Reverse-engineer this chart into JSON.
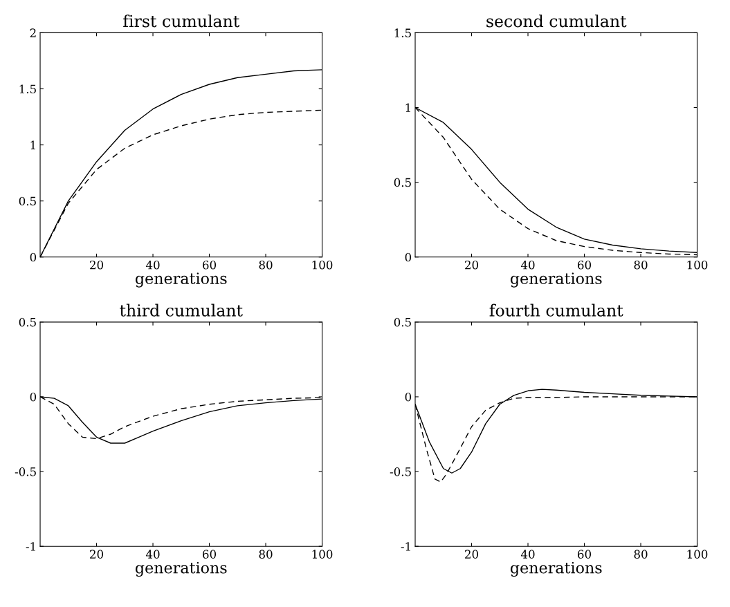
{
  "chart_data": [
    {
      "type": "line",
      "title": "first cumulant",
      "xlabel": "generations",
      "xlim": [
        0,
        100
      ],
      "xticks": [
        20,
        40,
        60,
        80,
        100
      ],
      "ylim": [
        0,
        2
      ],
      "yticks": [
        0,
        0.5,
        1,
        1.5,
        2
      ],
      "grid": false,
      "legend": false,
      "series": [
        {
          "color": "#000000",
          "line_style": "solid",
          "x": [
            0,
            10,
            20,
            30,
            40,
            50,
            60,
            70,
            80,
            90,
            100
          ],
          "values": [
            0,
            0.5,
            0.85,
            1.13,
            1.32,
            1.45,
            1.54,
            1.6,
            1.63,
            1.66,
            1.67
          ]
        },
        {
          "color": "#000000",
          "line_style": "dashed",
          "x": [
            0,
            10,
            20,
            30,
            40,
            50,
            60,
            70,
            80,
            90,
            100
          ],
          "values": [
            0,
            0.48,
            0.78,
            0.97,
            1.09,
            1.17,
            1.23,
            1.27,
            1.29,
            1.3,
            1.31
          ]
        }
      ]
    },
    {
      "type": "line",
      "title": "second cumulant",
      "xlabel": "generations",
      "xlim": [
        0,
        100
      ],
      "xticks": [
        20,
        40,
        60,
        80,
        100
      ],
      "ylim": [
        0,
        1.5
      ],
      "yticks": [
        0,
        0.5,
        1,
        1.5
      ],
      "grid": false,
      "legend": false,
      "series": [
        {
          "color": "#000000",
          "line_style": "solid",
          "x": [
            0,
            10,
            20,
            30,
            40,
            50,
            60,
            70,
            80,
            90,
            100
          ],
          "values": [
            1.0,
            0.9,
            0.72,
            0.5,
            0.32,
            0.2,
            0.12,
            0.08,
            0.055,
            0.04,
            0.03
          ]
        },
        {
          "color": "#000000",
          "line_style": "dashed",
          "x": [
            0,
            10,
            20,
            30,
            40,
            50,
            60,
            70,
            80,
            90,
            100
          ],
          "values": [
            1.0,
            0.8,
            0.52,
            0.32,
            0.19,
            0.11,
            0.07,
            0.045,
            0.03,
            0.02,
            0.015
          ]
        }
      ]
    },
    {
      "type": "line",
      "title": "third cumulant",
      "xlabel": "generations",
      "xlim": [
        0,
        100
      ],
      "xticks": [
        20,
        40,
        60,
        80,
        100
      ],
      "ylim": [
        -1,
        0.5
      ],
      "yticks": [
        -1,
        -0.5,
        0,
        0.5
      ],
      "grid": false,
      "legend": false,
      "series": [
        {
          "color": "#000000",
          "line_style": "solid",
          "x": [
            0,
            5,
            10,
            15,
            20,
            25,
            30,
            35,
            40,
            50,
            60,
            70,
            80,
            90,
            100
          ],
          "values": [
            0,
            -0.01,
            -0.06,
            -0.17,
            -0.27,
            -0.31,
            -0.31,
            -0.27,
            -0.23,
            -0.16,
            -0.1,
            -0.06,
            -0.04,
            -0.025,
            -0.015
          ]
        },
        {
          "color": "#000000",
          "line_style": "dashed",
          "x": [
            0,
            5,
            10,
            15,
            20,
            25,
            30,
            40,
            50,
            60,
            70,
            80,
            90,
            100
          ],
          "values": [
            0,
            -0.05,
            -0.18,
            -0.27,
            -0.28,
            -0.25,
            -0.2,
            -0.13,
            -0.08,
            -0.05,
            -0.03,
            -0.02,
            -0.01,
            -0.005
          ]
        }
      ]
    },
    {
      "type": "line",
      "title": "fourth cumulant",
      "xlabel": "generations",
      "xlim": [
        0,
        100
      ],
      "xticks": [
        20,
        40,
        60,
        80,
        100
      ],
      "ylim": [
        -1,
        0.5
      ],
      "yticks": [
        -1,
        -0.5,
        0,
        0.5
      ],
      "grid": false,
      "legend": false,
      "series": [
        {
          "color": "#000000",
          "line_style": "solid",
          "x": [
            0,
            5,
            10,
            13,
            16,
            20,
            25,
            30,
            35,
            40,
            45,
            50,
            60,
            70,
            80,
            90,
            100
          ],
          "values": [
            -0.05,
            -0.3,
            -0.48,
            -0.51,
            -0.48,
            -0.37,
            -0.18,
            -0.05,
            0.01,
            0.04,
            0.05,
            0.045,
            0.03,
            0.02,
            0.01,
            0.005,
            0
          ]
        },
        {
          "color": "#000000",
          "line_style": "dashed",
          "x": [
            0,
            4,
            7,
            9,
            11,
            15,
            20,
            25,
            30,
            35,
            40,
            50,
            60,
            80,
            100
          ],
          "values": [
            -0.05,
            -0.35,
            -0.55,
            -0.57,
            -0.52,
            -0.38,
            -0.2,
            -0.09,
            -0.04,
            -0.01,
            -0.005,
            -0.005,
            0,
            0,
            0
          ]
        }
      ]
    }
  ]
}
